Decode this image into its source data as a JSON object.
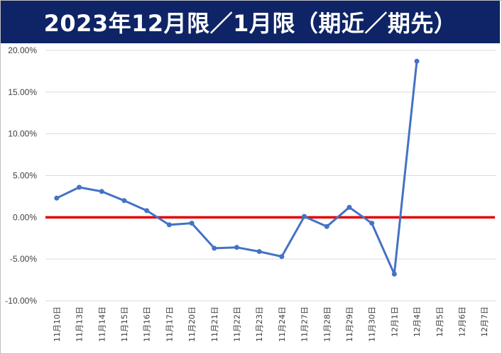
{
  "chart_data": {
    "type": "line",
    "title": "2023年12月限／1月限（期近／期先）",
    "xlabel": "",
    "ylabel": "",
    "ylim": [
      -0.1,
      0.2
    ],
    "yticks": [
      "20.00%",
      "15.00%",
      "10.00%",
      "5.00%",
      "0.00%",
      "-5.00%",
      "-10.00%"
    ],
    "ytick_values": [
      0.2,
      0.15,
      0.1,
      0.05,
      0.0,
      -0.05,
      -0.1
    ],
    "categories": [
      "11月10日",
      "11月13日",
      "11月14日",
      "11月15日",
      "11月16日",
      "11月17日",
      "11月20日",
      "11月21日",
      "11月22日",
      "11月23日",
      "11月24日",
      "11月27日",
      "11月28日",
      "11月29日",
      "11月30日",
      "12月1日",
      "12月4日",
      "12月5日",
      "12月6日",
      "12月7日"
    ],
    "series": [
      {
        "values": [
          0.023,
          0.036,
          0.031,
          0.02,
          0.008,
          -0.009,
          -0.007,
          -0.037,
          -0.036,
          -0.041,
          -0.047,
          0.001,
          -0.011,
          0.012,
          -0.007,
          -0.068,
          0.187,
          null,
          null,
          null
        ],
        "color": "#4472c4"
      }
    ],
    "reference_line": {
      "value": 0.0,
      "color": "#e00000"
    },
    "grid": true,
    "colors": {
      "title_bg": "#0e2466",
      "title_fg": "#ffffff",
      "grid": "#d9d9d9",
      "axis_text": "#404040"
    }
  }
}
